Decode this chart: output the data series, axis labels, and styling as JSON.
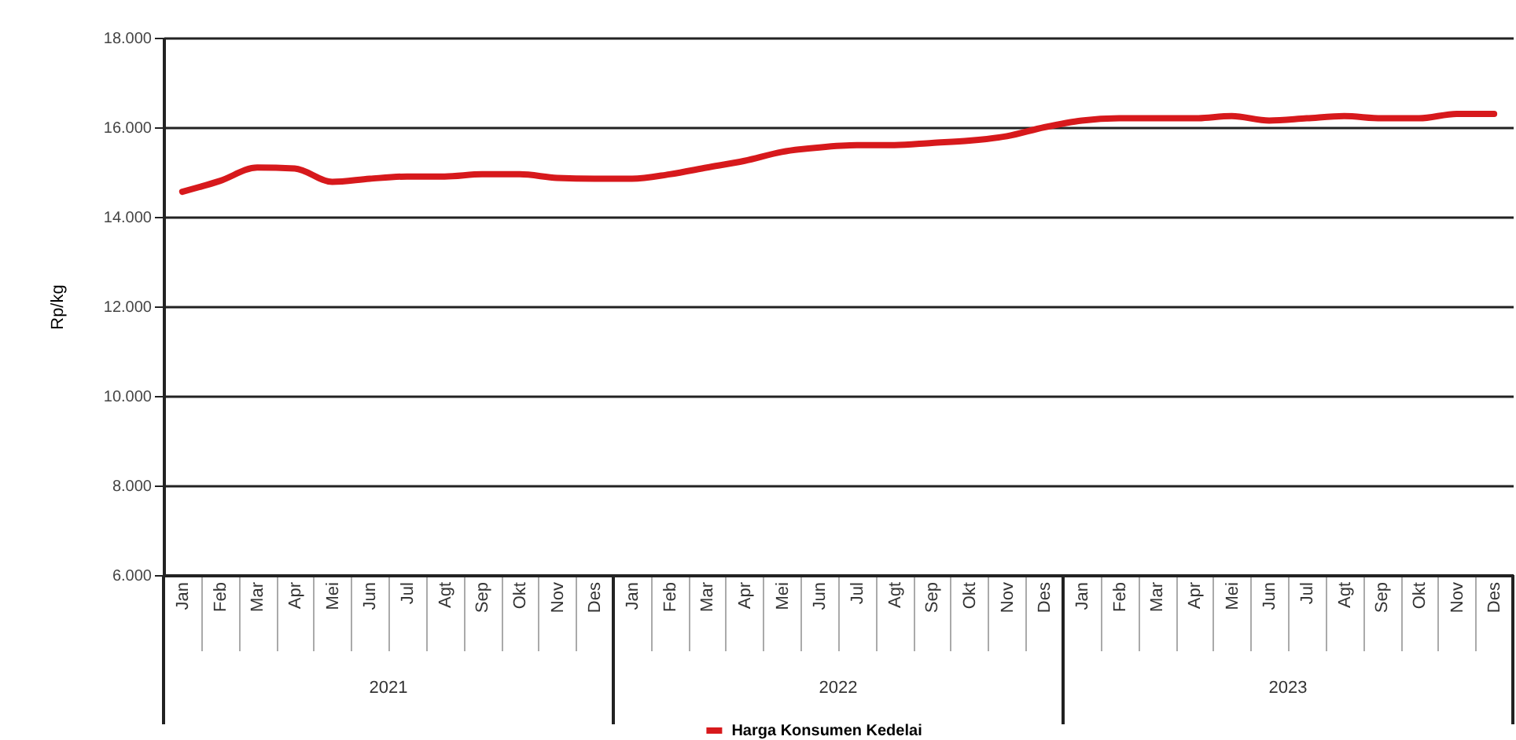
{
  "chart_data": {
    "type": "line",
    "ylabel": "Rp/kg",
    "categories": [
      "Jan",
      "Feb",
      "Mar",
      "Apr",
      "Mei",
      "Jun",
      "Jul",
      "Agt",
      "Sep",
      "Okt",
      "Nov",
      "Des",
      "Jan",
      "Feb",
      "Mar",
      "Apr",
      "Mei",
      "Jun",
      "Jul",
      "Agt",
      "Sep",
      "Okt",
      "Nov",
      "Des",
      "Jan",
      "Feb",
      "Mar",
      "Apr",
      "Mei",
      "Jun",
      "Jul",
      "Agt",
      "Sep",
      "Okt",
      "Nov",
      "Des"
    ],
    "series": [
      {
        "name": "Harga Konsumen Kedelai",
        "color": "#d7191c",
        "values": [
          14560,
          14800,
          15100,
          15080,
          14780,
          14850,
          14900,
          14900,
          14950,
          14950,
          14870,
          14850,
          14850,
          14950,
          15100,
          15250,
          15450,
          15550,
          15600,
          15600,
          15650,
          15700,
          15800,
          16000,
          16150,
          16200,
          16200,
          16200,
          16250,
          16150,
          16200,
          16250,
          16200,
          16200,
          16300,
          16300
        ]
      }
    ],
    "annotations": [
      "2021",
      "2022",
      "2023"
    ],
    "ylim": [
      6000,
      18000
    ],
    "yticks": [
      {
        "value": 6000,
        "label": "6.000"
      },
      {
        "value": 8000,
        "label": "8.000"
      },
      {
        "value": 10000,
        "label": "10.000"
      },
      {
        "value": 12000,
        "label": "12.000"
      },
      {
        "value": 14000,
        "label": "14.000"
      },
      {
        "value": 16000,
        "label": "16.000"
      },
      {
        "value": 18000,
        "label": "18.000"
      }
    ],
    "grid": "y",
    "legend": "bottom",
    "line_style": "solid",
    "marker": "none"
  }
}
